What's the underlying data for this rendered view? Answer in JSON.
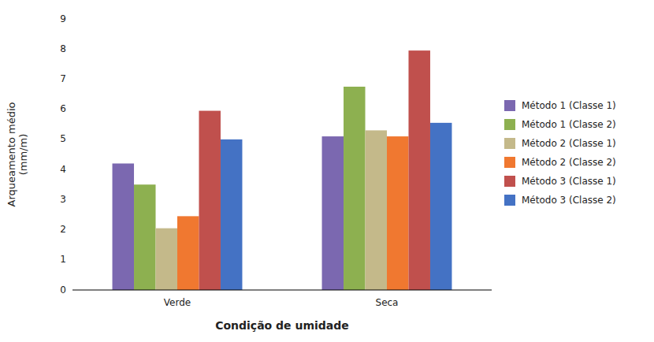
{
  "chart_data": {
    "type": "bar",
    "categories": [
      "Verde",
      "Seca"
    ],
    "series": [
      {
        "name": "Método 1 (Classe 1)",
        "values": [
          4.2,
          5.1
        ],
        "color": "#7B68B0"
      },
      {
        "name": "Método 1 (Classe 2)",
        "values": [
          3.5,
          6.75
        ],
        "color": "#8DB050"
      },
      {
        "name": "Método 2 (Classe 1)",
        "values": [
          2.05,
          5.3
        ],
        "color": "#C4B98A"
      },
      {
        "name": "Método 2 (Classe 2)",
        "values": [
          2.45,
          5.1
        ],
        "color": "#F07830"
      },
      {
        "name": "Método 3 (Classe 1)",
        "values": [
          5.95,
          7.95
        ],
        "color": "#C0504D"
      },
      {
        "name": "Método 3 (Classe 2)",
        "values": [
          5.0,
          5.55
        ],
        "color": "#4472C4"
      }
    ],
    "xlabel": "Condição de umidade",
    "ylabel": "Arqueamento médio\n(mm/m)",
    "ylim": [
      0,
      9
    ],
    "yticks": [
      0,
      1,
      2,
      3,
      4,
      5,
      6,
      7,
      8,
      9
    ],
    "grid": false,
    "legend": "right"
  }
}
